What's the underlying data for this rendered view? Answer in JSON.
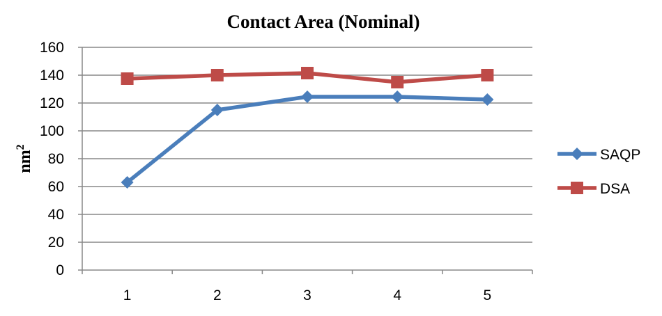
{
  "chart_data": {
    "type": "line",
    "title": "Contact Area (Nominal)",
    "ylabel_base": "nm",
    "ylabel_sup": "2",
    "xlabel": "",
    "categories": [
      "1",
      "2",
      "3",
      "4",
      "5"
    ],
    "ylim": [
      0,
      160
    ],
    "yticks": [
      0,
      20,
      40,
      60,
      80,
      100,
      120,
      140,
      160
    ],
    "grid": true,
    "legend_position": "right",
    "series": [
      {
        "name": "SAQP",
        "values": [
          63,
          115,
          124.5,
          124.5,
          122.5
        ],
        "color": "#4a7ebb",
        "marker": "diamond"
      },
      {
        "name": "DSA",
        "values": [
          137.5,
          140,
          141.5,
          135,
          140
        ],
        "color": "#be4b48",
        "marker": "square"
      }
    ]
  }
}
